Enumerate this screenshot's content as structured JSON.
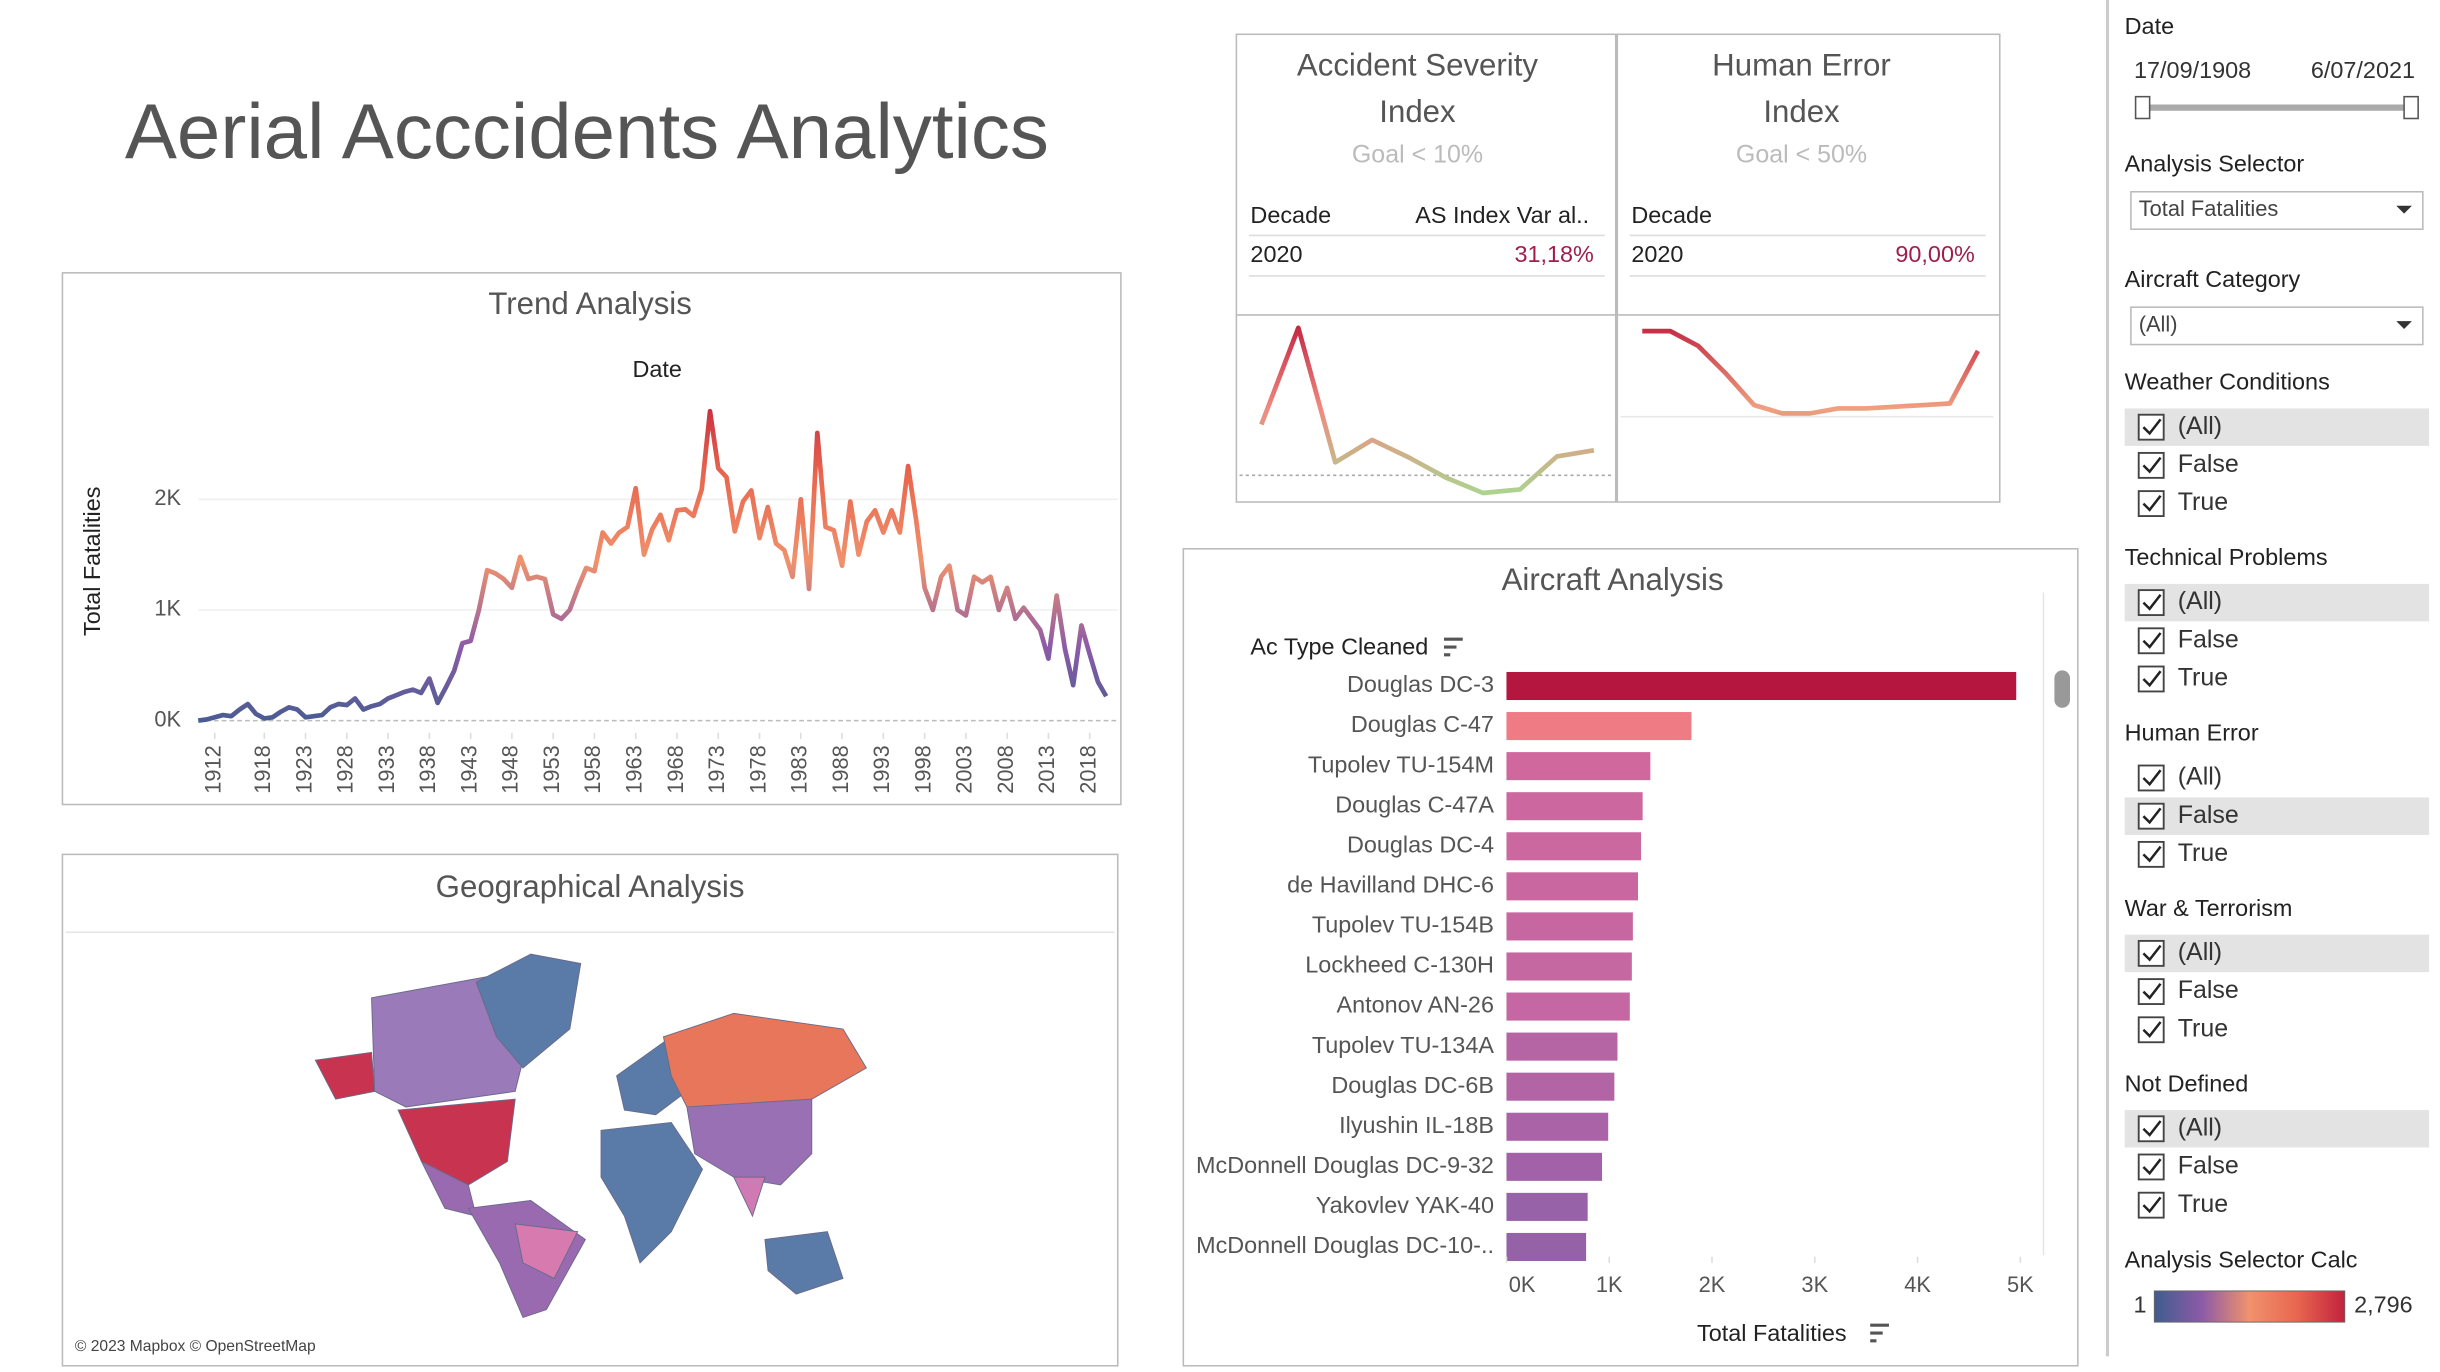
{
  "header": {
    "title": "Aerial Acccidents Analytics"
  },
  "chart_data": [
    {
      "type": "line",
      "title": "Trend Analysis",
      "x_label": "Date",
      "y_label": "Total Fatalities",
      "x": [
        1910,
        1911,
        1912,
        1913,
        1914,
        1915,
        1916,
        1917,
        1918,
        1919,
        1920,
        1921,
        1922,
        1923,
        1924,
        1925,
        1926,
        1927,
        1928,
        1929,
        1930,
        1931,
        1932,
        1933,
        1934,
        1935,
        1936,
        1937,
        1938,
        1939,
        1940,
        1941,
        1942,
        1943,
        1944,
        1945,
        1946,
        1947,
        1948,
        1949,
        1950,
        1951,
        1952,
        1953,
        1954,
        1955,
        1956,
        1957,
        1958,
        1959,
        1960,
        1961,
        1962,
        1963,
        1964,
        1965,
        1966,
        1967,
        1968,
        1969,
        1970,
        1971,
        1972,
        1973,
        1974,
        1975,
        1976,
        1977,
        1978,
        1979,
        1980,
        1981,
        1982,
        1983,
        1984,
        1985,
        1986,
        1987,
        1988,
        1989,
        1990,
        1991,
        1992,
        1993,
        1994,
        1995,
        1996,
        1997,
        1998,
        1999,
        2000,
        2001,
        2002,
        2003,
        2004,
        2005,
        2006,
        2007,
        2008,
        2009,
        2010,
        2011,
        2012,
        2013,
        2014,
        2015,
        2016,
        2017,
        2018,
        2019,
        2020
      ],
      "values": [
        0,
        10,
        30,
        50,
        40,
        100,
        150,
        60,
        20,
        30,
        80,
        120,
        100,
        30,
        40,
        50,
        120,
        150,
        140,
        200,
        100,
        130,
        150,
        200,
        230,
        260,
        280,
        250,
        380,
        160,
        300,
        450,
        700,
        720,
        1000,
        1360,
        1330,
        1280,
        1200,
        1480,
        1280,
        1300,
        1280,
        960,
        920,
        1000,
        1200,
        1380,
        1350,
        1700,
        1600,
        1700,
        1750,
        2100,
        1500,
        1730,
        1860,
        1630,
        1900,
        1910,
        1850,
        2090,
        2796,
        2280,
        2200,
        1710,
        1980,
        2080,
        1650,
        1930,
        1600,
        1540,
        1300,
        2000,
        1190,
        2600,
        1750,
        1720,
        1400,
        1980,
        1500,
        1800,
        1900,
        1700,
        1900,
        1700,
        2300,
        1800,
        1200,
        1000,
        1300,
        1400,
        1000,
        950,
        1300,
        1250,
        1300,
        1000,
        1200,
        920,
        1020,
        920,
        820,
        560,
        1130,
        650,
        320,
        860,
        600,
        350,
        220
      ],
      "xlim": [
        1910,
        2021.4
      ],
      "xticks": [
        1912,
        1918,
        1923,
        1928,
        1933,
        1938,
        1943,
        1948,
        1953,
        1958,
        1963,
        1968,
        1973,
        1978,
        1983,
        1988,
        1993,
        1998,
        2003,
        2008,
        2013,
        2018
      ],
      "ylim": [
        -110,
        2990
      ],
      "yticks": [
        {
          "value": 0,
          "label": "0K"
        },
        {
          "value": 1000,
          "label": "1K"
        },
        {
          "value": 2000,
          "label": "2K"
        }
      ],
      "grid": true,
      "color_scale": [
        "#3f5c8f",
        "#8c5ba7",
        "#f0926c",
        "#e8664f",
        "#c2223d"
      ]
    },
    {
      "type": "kpi_line",
      "title_lines": [
        "Accident Severity",
        "Index"
      ],
      "goal": "Goal < 10%",
      "table_headers": [
        "Decade",
        "AS Index Var al.."
      ],
      "table_row": [
        "2020",
        "31,18%"
      ],
      "values": [
        53,
        135,
        21,
        40,
        25,
        8,
        -5,
        -2,
        26,
        31.18
      ],
      "goal_value": 10,
      "ylim": [
        -10,
        142
      ],
      "color_scale": [
        "#a8d890",
        "#f08a80",
        "#c0203e"
      ]
    },
    {
      "type": "kpi_line",
      "title_lines": [
        "Human Error",
        "Index"
      ],
      "goal": "Goal < 50%",
      "table_headers": [
        "Decade"
      ],
      "table_row": [
        "2020",
        "90,00%"
      ],
      "values": [
        102,
        102,
        93,
        76,
        57,
        52,
        52,
        55,
        55,
        56,
        57,
        58,
        90
      ],
      "goal_value": 50,
      "ylim": [
        0,
        109
      ],
      "color_scale": [
        "#2e7d3e",
        "#f0a080",
        "#c0203e"
      ]
    },
    {
      "type": "bar",
      "orientation": "horizontal",
      "title": "Aircraft Analysis",
      "category_label": "Ac Type Cleaned",
      "x_label": "Total Fatalities",
      "categories": [
        "Douglas DC-3",
        "Douglas C-47",
        "Tupolev TU-154M",
        "Douglas C-47A",
        "Douglas DC-4",
        "de Havilland DHC-6",
        "Tupolev TU-154B",
        "Lockheed C-130H",
        "Antonov AN-26",
        "Tupolev TU-134A",
        "Douglas DC-6B",
        "Ilyushin IL-18B",
        "McDonnell Douglas DC-9-32",
        "Yakovlev YAK-40",
        "McDonnell Douglas DC-10-.."
      ],
      "values": [
        4960,
        1800,
        1400,
        1325,
        1310,
        1280,
        1230,
        1220,
        1200,
        1080,
        1050,
        990,
        930,
        790,
        775
      ],
      "colors": [
        "#b5163f",
        "#ef7b85",
        "#d0689e",
        "#cc689f",
        "#cb68a0",
        "#c968a0",
        "#c667a1",
        "#c567a1",
        "#c467a2",
        "#b564a4",
        "#b264a5",
        "#aa63a6",
        "#a262a7",
        "#9762a8",
        "#9562a8"
      ],
      "xlim": [
        0,
        5210
      ],
      "xticks": [
        {
          "value": 0,
          "label": "0K"
        },
        {
          "value": 1000,
          "label": "1K"
        },
        {
          "value": 2000,
          "label": "2K"
        },
        {
          "value": 3000,
          "label": "3K"
        },
        {
          "value": 4000,
          "label": "4K"
        },
        {
          "value": 5000,
          "label": "5K"
        }
      ],
      "grid": false
    },
    {
      "type": "map",
      "title": "Geographical Analysis",
      "credit": "© 2023 Mapbox © OpenStreetMap"
    }
  ],
  "filters": {
    "date": {
      "label": "Date",
      "start": "17/09/1908",
      "end": "6/07/2021"
    },
    "analysis_selector": {
      "label": "Analysis Selector",
      "value": "Total Fatalities"
    },
    "aircraft_category": {
      "label": "Aircraft Category",
      "value": "(All)"
    },
    "groups": [
      {
        "label": "Weather Conditions",
        "options": [
          "(All)",
          "False",
          "True"
        ],
        "highlight": 0
      },
      {
        "label": "Technical Problems",
        "options": [
          "(All)",
          "False",
          "True"
        ],
        "highlight": 0
      },
      {
        "label": "Human Error",
        "options": [
          "(All)",
          "False",
          "True"
        ],
        "highlight": 1
      },
      {
        "label": "War & Terrorism",
        "options": [
          "(All)",
          "False",
          "True"
        ],
        "highlight": 0
      },
      {
        "label": "Not Defined",
        "options": [
          "(All)",
          "False",
          "True"
        ],
        "highlight": 0
      }
    ],
    "legend": {
      "label": "Analysis Selector Calc",
      "min": 1,
      "max": {
        "value": 2796,
        "label": "2,796"
      },
      "color_scale": [
        "#3f5c8f",
        "#8c5ba7",
        "#f0926c",
        "#e8664f",
        "#c2223d"
      ]
    }
  }
}
